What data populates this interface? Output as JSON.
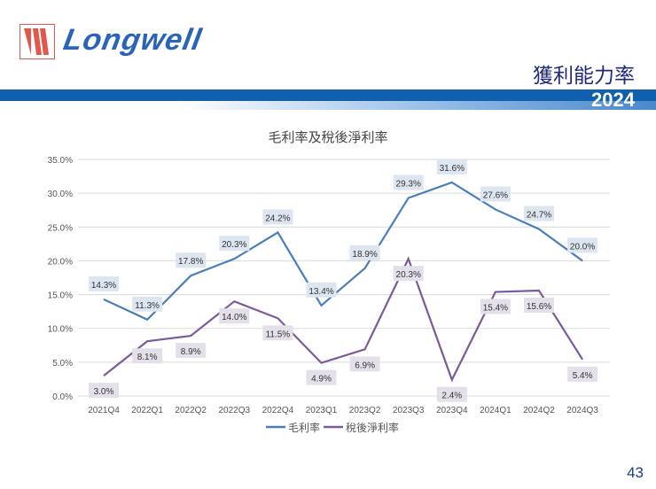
{
  "header": {
    "logo_text": "Longwell",
    "title": "獲利能力率",
    "year": "2024"
  },
  "page_number": "43",
  "colors": {
    "gross": "#4a7ebb",
    "net": "#7a5a9c",
    "band": "#1160ad"
  },
  "chart_data": {
    "type": "line",
    "title": "毛利率及稅後淨利率",
    "categories": [
      "2021Q4",
      "2022Q1",
      "2022Q2",
      "2022Q3",
      "2022Q4",
      "2023Q1",
      "2023Q2",
      "2023Q3",
      "2023Q4",
      "2024Q1",
      "2024Q2",
      "2024Q3"
    ],
    "yticks": [
      "0.0%",
      "5.0%",
      "10.0%",
      "15.0%",
      "20.0%",
      "25.0%",
      "30.0%",
      "35.0%"
    ],
    "ylim": [
      0,
      35
    ],
    "grid": true,
    "legend": "bottom",
    "series": [
      {
        "name": "毛利率",
        "values": [
          14.3,
          11.3,
          17.8,
          20.3,
          24.2,
          13.4,
          18.9,
          29.3,
          31.6,
          27.6,
          24.7,
          20.0
        ],
        "labels": [
          "14.3%",
          "11.3%",
          "17.8%",
          "20.3%",
          "24.2%",
          "13.4%",
          "18.9%",
          "29.3%",
          "31.6%",
          "27.6%",
          "24.7%",
          "20.0%"
        ]
      },
      {
        "name": "稅後淨利率",
        "values": [
          3.0,
          8.1,
          8.9,
          14.0,
          11.5,
          4.9,
          6.9,
          20.3,
          2.4,
          15.4,
          15.6,
          5.4
        ],
        "labels": [
          "3.0%",
          "8.1%",
          "8.9%",
          "14.0%",
          "11.5%",
          "4.9%",
          "6.9%",
          "20.3%",
          "2.4%",
          "15.4%",
          "15.6%",
          "5.4%"
        ]
      }
    ]
  }
}
